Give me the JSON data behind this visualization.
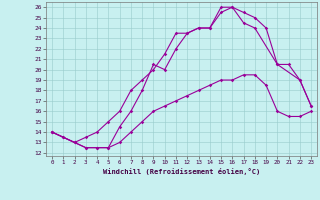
{
  "xlabel": "Windchill (Refroidissement éolien,°C)",
  "background_color": "#c8f0f0",
  "line_color": "#990099",
  "xlim": [
    -0.5,
    23.5
  ],
  "ylim": [
    11.7,
    26.5
  ],
  "xticks": [
    0,
    1,
    2,
    3,
    4,
    5,
    6,
    7,
    8,
    9,
    10,
    11,
    12,
    13,
    14,
    15,
    16,
    17,
    18,
    19,
    20,
    21,
    22,
    23
  ],
  "yticks": [
    12,
    13,
    14,
    15,
    16,
    17,
    18,
    19,
    20,
    21,
    22,
    23,
    24,
    25,
    26
  ],
  "series1_x": [
    0,
    1,
    2,
    3,
    4,
    5,
    6,
    7,
    8,
    9,
    10,
    11,
    12,
    13,
    14,
    15,
    16,
    17,
    18,
    19,
    20,
    21,
    22,
    23
  ],
  "series1_y": [
    14.0,
    13.5,
    13.0,
    12.5,
    12.5,
    12.5,
    13.0,
    14.0,
    15.0,
    16.0,
    16.5,
    17.0,
    17.5,
    18.0,
    18.5,
    19.0,
    19.0,
    19.5,
    19.5,
    18.5,
    16.0,
    15.5,
    15.5,
    16.0
  ],
  "series2_x": [
    0,
    1,
    2,
    3,
    4,
    5,
    6,
    7,
    8,
    9,
    10,
    11,
    12,
    13,
    14,
    15,
    16,
    17,
    18,
    19,
    20,
    21,
    22,
    23
  ],
  "series2_y": [
    14.0,
    13.5,
    13.0,
    12.5,
    12.5,
    12.5,
    14.5,
    16.0,
    18.0,
    20.5,
    20.0,
    22.0,
    23.5,
    24.0,
    24.0,
    25.5,
    26.0,
    25.5,
    25.0,
    24.0,
    20.5,
    20.5,
    19.0,
    16.5
  ],
  "series3_x": [
    0,
    2,
    3,
    4,
    5,
    6,
    7,
    8,
    9,
    10,
    11,
    12,
    13,
    14,
    15,
    16,
    17,
    18,
    20,
    22,
    23
  ],
  "series3_y": [
    14.0,
    13.0,
    13.5,
    14.0,
    15.0,
    16.0,
    18.0,
    19.0,
    20.0,
    21.5,
    23.5,
    23.5,
    24.0,
    24.0,
    26.0,
    26.0,
    24.5,
    24.0,
    20.5,
    19.0,
    16.5
  ]
}
